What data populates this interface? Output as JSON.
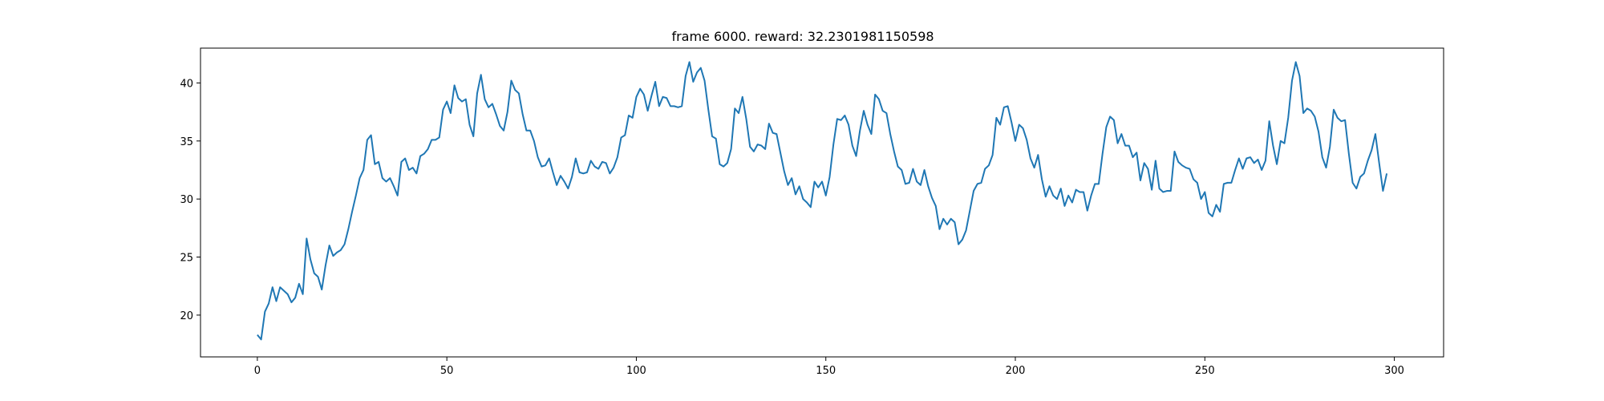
{
  "chart_data": {
    "type": "line",
    "title": "frame 6000. reward: 32.2301981150598",
    "xlabel": "",
    "ylabel": "",
    "xlim": [
      -15,
      313
    ],
    "ylim": [
      16.4,
      43.0
    ],
    "xticks": [
      0,
      50,
      100,
      150,
      200,
      250,
      300
    ],
    "yticks": [
      20,
      25,
      30,
      35,
      40
    ],
    "grid": false,
    "legend": "none",
    "series": [
      {
        "color": "#1f77b4",
        "values": [
          18.3,
          17.9,
          20.3,
          21.0,
          22.4,
          21.2,
          22.4,
          22.1,
          21.8,
          21.1,
          21.5,
          22.7,
          21.8,
          26.6,
          24.8,
          23.6,
          23.3,
          22.2,
          24.3,
          26.0,
          25.1,
          25.4,
          25.6,
          26.1,
          27.4,
          28.9,
          30.3,
          31.8,
          32.5,
          35.1,
          35.5,
          33.0,
          33.2,
          31.8,
          31.5,
          31.8,
          31.1,
          30.3,
          33.2,
          33.5,
          32.5,
          32.7,
          32.2,
          33.7,
          33.9,
          34.3,
          35.1,
          35.1,
          35.3,
          37.7,
          38.4,
          37.4,
          39.8,
          38.7,
          38.4,
          38.6,
          36.4,
          35.4,
          39.1,
          40.7,
          38.6,
          37.9,
          38.2,
          37.3,
          36.3,
          35.9,
          37.5,
          40.2,
          39.4,
          39.1,
          37.3,
          35.9,
          35.9,
          35.0,
          33.6,
          32.8,
          32.9,
          33.5,
          32.3,
          31.2,
          32.0,
          31.5,
          30.9,
          31.9,
          33.5,
          32.3,
          32.2,
          32.3,
          33.3,
          32.8,
          32.6,
          33.2,
          33.1,
          32.2,
          32.7,
          33.6,
          35.3,
          35.5,
          37.2,
          37.0,
          38.8,
          39.5,
          39.0,
          37.6,
          38.9,
          40.1,
          38.0,
          38.8,
          38.7,
          38.0,
          38.0,
          37.9,
          38.0,
          40.6,
          41.8,
          40.1,
          40.9,
          41.3,
          40.2,
          37.7,
          35.4,
          35.2,
          33.0,
          32.8,
          33.1,
          34.3,
          37.8,
          37.4,
          38.8,
          36.9,
          34.5,
          34.1,
          34.7,
          34.6,
          34.3,
          36.5,
          35.7,
          35.6,
          34.0,
          32.4,
          31.2,
          31.8,
          30.4,
          31.1,
          30.0,
          29.7,
          29.3,
          31.5,
          31.0,
          31.5,
          30.3,
          31.9,
          34.7,
          36.9,
          36.8,
          37.2,
          36.4,
          34.6,
          33.7,
          35.9,
          37.6,
          36.4,
          35.6,
          39.0,
          38.6,
          37.6,
          37.4,
          35.6,
          34.1,
          32.8,
          32.5,
          31.3,
          31.4,
          32.6,
          31.5,
          31.2,
          32.5,
          31.1,
          30.1,
          29.4,
          27.4,
          28.3,
          27.8,
          28.3,
          28.0,
          26.1,
          26.5,
          27.3,
          29.0,
          30.7,
          31.3,
          31.4,
          32.6,
          32.9,
          33.8,
          37.0,
          36.4,
          37.9,
          38.0,
          36.6,
          35.0,
          36.4,
          36.1,
          35.1,
          33.5,
          32.7,
          33.8,
          31.7,
          30.2,
          31.1,
          30.3,
          30.0,
          30.9,
          29.4,
          30.3,
          29.7,
          30.8,
          30.6,
          30.6,
          29.0,
          30.3,
          31.3,
          31.3,
          33.9,
          36.2,
          37.1,
          36.8,
          34.8,
          35.6,
          34.6,
          34.6,
          33.6,
          34.0,
          31.6,
          33.1,
          32.6,
          30.8,
          33.3,
          30.9,
          30.6,
          30.7,
          30.7,
          34.1,
          33.2,
          32.9,
          32.7,
          32.6,
          31.7,
          31.4,
          30.0,
          30.6,
          28.8,
          28.5,
          29.5,
          28.9,
          31.3,
          31.4,
          31.4,
          32.5,
          33.5,
          32.6,
          33.5,
          33.6,
          33.1,
          33.4,
          32.5,
          33.3,
          36.7,
          34.6,
          33.0,
          35.0,
          34.8,
          37.0,
          40.2,
          41.8,
          40.6,
          37.4,
          37.8,
          37.6,
          37.1,
          35.8,
          33.6,
          32.7,
          34.5,
          37.7,
          37.0,
          36.7,
          36.8,
          33.9,
          31.4,
          30.9,
          31.9,
          32.2,
          33.3,
          34.2,
          35.6,
          33.1,
          30.7,
          32.2
        ]
      }
    ]
  }
}
